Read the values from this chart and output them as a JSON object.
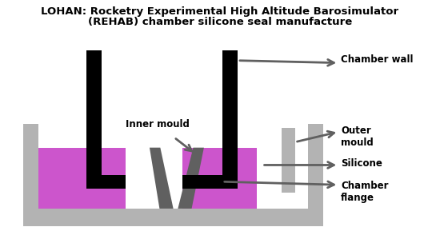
{
  "title_line1": "LOHAN: Rocketry Experimental High Altitude Barosimulator",
  "title_line2": "(REHAB) chamber silicone seal manufacture",
  "colors": {
    "black": "#000000",
    "gray_light": "#b3b3b3",
    "gray_medium": "#606060",
    "silicone": "#cc55cc",
    "white": "#ffffff"
  },
  "labels": {
    "chamber_wall": "Chamber wall",
    "outer_mould": "Outer\nmould",
    "inner_mould": "Inner mould",
    "silicone": "Silicone",
    "chamber_flange": "Chamber\nflange"
  }
}
